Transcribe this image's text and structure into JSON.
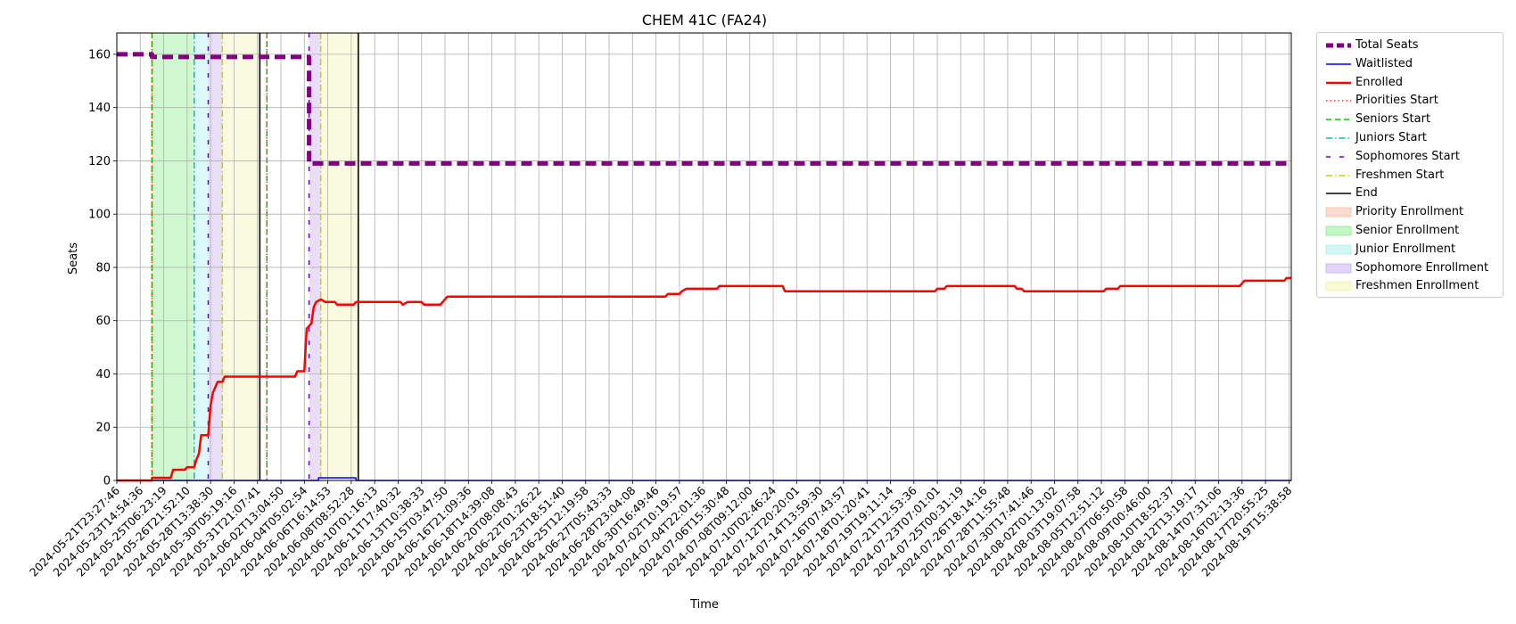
{
  "chart_data": {
    "type": "line",
    "title": "CHEM 41C (FA24)",
    "xlabel": "Time",
    "ylabel": "Seats",
    "ylim": [
      0,
      168
    ],
    "yticks": [
      0,
      20,
      40,
      60,
      80,
      100,
      120,
      140,
      160
    ],
    "grid": true,
    "legend_placement": "outside-right",
    "x_tick_labels": [
      "2024-05-21T23:27:46",
      "2024-05-23T14:54:36",
      "2024-05-25T06:23:19",
      "2024-05-26T21:52:10",
      "2024-05-28T13:38:30",
      "2024-05-30T05:19:16",
      "2024-05-31T21:07:41",
      "2024-06-02T13:04:50",
      "2024-06-04T05:02:54",
      "2024-06-06T16:14:53",
      "2024-06-08T08:52:28",
      "2024-06-10T01:16:13",
      "2024-06-11T17:40:32",
      "2024-06-13T10:38:33",
      "2024-06-15T03:47:50",
      "2024-06-16T21:09:36",
      "2024-06-18T14:39:08",
      "2024-06-20T08:08:43",
      "2024-06-22T01:26:22",
      "2024-06-23T18:51:40",
      "2024-06-25T12:19:58",
      "2024-06-27T05:43:33",
      "2024-06-28T23:04:08",
      "2024-06-30T16:49:46",
      "2024-07-02T10:19:57",
      "2024-07-04T22:01:36",
      "2024-07-06T15:30:48",
      "2024-07-08T09:12:00",
      "2024-07-10T02:46:24",
      "2024-07-12T20:20:01",
      "2024-07-14T13:59:30",
      "2024-07-16T07:43:57",
      "2024-07-18T01:20:41",
      "2024-07-19T19:11:14",
      "2024-07-21T12:53:36",
      "2024-07-23T07:01:01",
      "2024-07-25T00:31:19",
      "2024-07-26T18:14:16",
      "2024-07-28T11:55:48",
      "2024-07-30T17:41:46",
      "2024-08-02T01:13:02",
      "2024-08-03T19:07:58",
      "2024-08-05T12:51:12",
      "2024-08-07T06:50:58",
      "2024-08-09T00:46:00",
      "2024-08-10T18:52:37",
      "2024-08-12T13:19:17",
      "2024-08-14T07:31:06",
      "2024-08-16T02:13:36",
      "2024-08-17T20:55:25",
      "2024-08-19T15:38:58"
    ],
    "x_index_range": [
      0,
      50.1
    ],
    "series": [
      {
        "name": "Total Seats",
        "color": "#800080",
        "style": "dashed",
        "points": [
          [
            0,
            160
          ],
          [
            1.5,
            160
          ],
          [
            1.5,
            159
          ],
          [
            8.2,
            159
          ],
          [
            8.2,
            119
          ],
          [
            50.1,
            119
          ]
        ]
      },
      {
        "name": "Waitlisted",
        "color": "#0000ff",
        "style": "solid",
        "points": [
          [
            0,
            0
          ],
          [
            8.6,
            0
          ],
          [
            8.6,
            1
          ],
          [
            10.2,
            1
          ],
          [
            10.2,
            0
          ],
          [
            50.1,
            0
          ]
        ]
      },
      {
        "name": "Enrolled",
        "color": "#ff0000",
        "style": "solid",
        "points": [
          [
            0,
            0
          ],
          [
            1.5,
            0
          ],
          [
            1.5,
            1
          ],
          [
            2.3,
            1
          ],
          [
            2.4,
            4
          ],
          [
            2.9,
            4
          ],
          [
            3.0,
            5
          ],
          [
            3.3,
            5
          ],
          [
            3.4,
            8
          ],
          [
            3.5,
            10
          ],
          [
            3.6,
            17
          ],
          [
            3.9,
            17
          ],
          [
            4.0,
            28
          ],
          [
            4.1,
            33
          ],
          [
            4.3,
            37
          ],
          [
            4.5,
            37
          ],
          [
            4.6,
            39
          ],
          [
            7.6,
            39
          ],
          [
            7.7,
            41
          ],
          [
            8.0,
            41
          ],
          [
            8.1,
            57
          ],
          [
            8.2,
            58
          ],
          [
            8.3,
            59
          ],
          [
            8.4,
            65
          ],
          [
            8.5,
            67
          ],
          [
            8.7,
            68
          ],
          [
            8.9,
            67
          ],
          [
            9.3,
            67
          ],
          [
            9.4,
            66
          ],
          [
            10.1,
            66
          ],
          [
            10.2,
            67
          ],
          [
            12.1,
            67
          ],
          [
            12.2,
            66
          ],
          [
            12.4,
            67
          ],
          [
            13.0,
            67
          ],
          [
            13.1,
            66
          ],
          [
            13.8,
            66
          ],
          [
            13.9,
            67
          ],
          [
            14.0,
            68
          ],
          [
            14.1,
            69
          ],
          [
            23.4,
            69
          ],
          [
            23.5,
            70
          ],
          [
            24.0,
            70
          ],
          [
            24.1,
            71
          ],
          [
            24.3,
            72
          ],
          [
            25.6,
            72
          ],
          [
            25.7,
            73
          ],
          [
            28.4,
            73
          ],
          [
            28.5,
            71
          ],
          [
            34.9,
            71
          ],
          [
            35.0,
            72
          ],
          [
            35.3,
            72
          ],
          [
            35.4,
            73
          ],
          [
            38.3,
            73
          ],
          [
            38.4,
            72
          ],
          [
            38.6,
            72
          ],
          [
            38.7,
            71
          ],
          [
            42.1,
            71
          ],
          [
            42.2,
            72
          ],
          [
            42.7,
            72
          ],
          [
            42.8,
            73
          ],
          [
            47.9,
            73
          ],
          [
            48.0,
            74
          ],
          [
            48.1,
            75
          ],
          [
            49.8,
            75
          ],
          [
            49.9,
            76
          ],
          [
            50.1,
            76
          ]
        ]
      }
    ],
    "markers": [
      {
        "name": "Seniors Start",
        "color": "#00cc00",
        "style": "dashed",
        "x": [
          1.5,
          6.4
        ]
      },
      {
        "name": "Priorities Start",
        "color": "#ff3333",
        "style": "dotted",
        "x": [
          1.5,
          6.4
        ]
      },
      {
        "name": "Juniors Start",
        "color": "#00bfbf",
        "style": "dashdot",
        "x": [
          3.3
        ]
      },
      {
        "name": "Sophomores Start",
        "color": "#6600cc",
        "style": "loosedash",
        "x": [
          3.9,
          8.2
        ]
      },
      {
        "name": "Freshmen Start",
        "color": "#cccc00",
        "style": "dashdot",
        "x": [
          4.5,
          8.7
        ]
      },
      {
        "name": "End",
        "color": "#000000",
        "style": "solid",
        "x": [
          6.1,
          10.3
        ]
      }
    ],
    "bands": [
      {
        "name": "Senior Enrollment",
        "color": "#90ee90",
        "ranges": [
          [
            1.5,
            3.3
          ]
        ]
      },
      {
        "name": "Junior Enrollment",
        "color": "#aeeeee",
        "ranges": [
          [
            3.3,
            3.9
          ]
        ]
      },
      {
        "name": "Sophomore Enrollment",
        "color": "#c8b0ee",
        "ranges": [
          [
            3.9,
            4.5
          ],
          [
            8.2,
            8.7
          ]
        ]
      },
      {
        "name": "Freshmen Enrollment",
        "color": "#f4f4b0",
        "ranges": [
          [
            4.5,
            6.1
          ],
          [
            8.7,
            10.3
          ]
        ]
      }
    ],
    "legend": [
      {
        "label": "Total Seats",
        "kind": "line",
        "color": "#800080",
        "style": "dashed",
        "width": 5
      },
      {
        "label": "Waitlisted",
        "kind": "line",
        "color": "#0000ff",
        "style": "solid",
        "width": 1.5
      },
      {
        "label": "Enrolled",
        "kind": "line",
        "color": "#ff0000",
        "style": "solid",
        "width": 2.5
      },
      {
        "label": "Priorities Start",
        "kind": "line",
        "color": "#ff3333",
        "style": "dotted",
        "width": 1.5
      },
      {
        "label": "Seniors Start",
        "kind": "line",
        "color": "#00cc00",
        "style": "dashed",
        "width": 1.5
      },
      {
        "label": "Juniors Start",
        "kind": "line",
        "color": "#00bfbf",
        "style": "dashdot",
        "width": 1.5
      },
      {
        "label": "Sophomores Start",
        "kind": "line",
        "color": "#6600cc",
        "style": "loosedash",
        "width": 1.5
      },
      {
        "label": "Freshmen Start",
        "kind": "line",
        "color": "#cccc00",
        "style": "dashdot",
        "width": 1.5
      },
      {
        "label": "End",
        "kind": "line",
        "color": "#000000",
        "style": "solid",
        "width": 1.5
      },
      {
        "label": "Priority Enrollment",
        "kind": "patch",
        "color": "#f5c0a8"
      },
      {
        "label": "Senior Enrollment",
        "kind": "patch",
        "color": "#90ee90"
      },
      {
        "label": "Junior Enrollment",
        "kind": "patch",
        "color": "#aeeeee"
      },
      {
        "label": "Sophomore Enrollment",
        "kind": "patch",
        "color": "#c8b0ee"
      },
      {
        "label": "Freshmen Enrollment",
        "kind": "patch",
        "color": "#f4f4b0"
      }
    ]
  }
}
